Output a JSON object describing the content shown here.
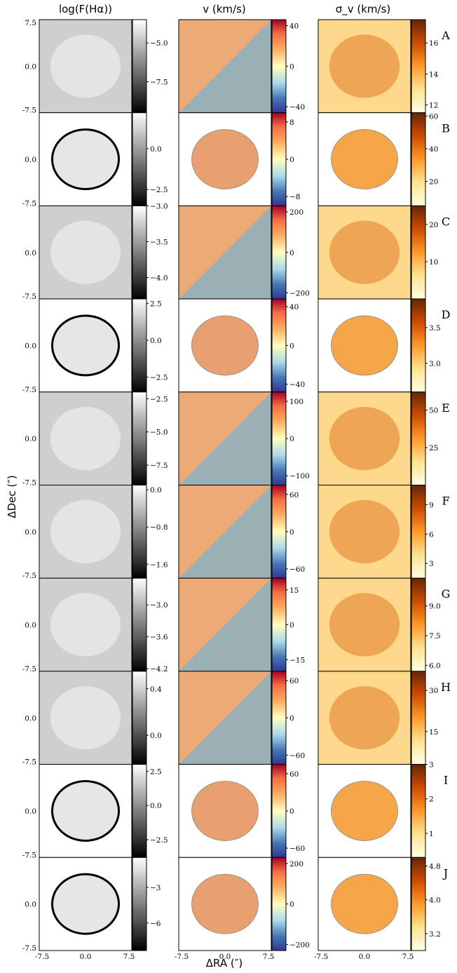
{
  "figure": {
    "column_titles": [
      "log(F(Hα))",
      "v (km/s)",
      "σ_v (km/s)"
    ],
    "ylabel": "ΔDec (″)",
    "xlabel": "ΔRA (″)"
  },
  "chart_data": {
    "type": "heatmap",
    "grid": false,
    "extent": [
      -7.5,
      7.5
    ],
    "x_ticks": [
      "-7.5",
      "0.0",
      "7.5"
    ],
    "y_ticks": [
      "7.5",
      "0.0",
      "-7.5"
    ],
    "columns": [
      {
        "key": "flux",
        "title": "log(F(Hα))",
        "colormap": "gray"
      },
      {
        "key": "velocity",
        "title": "v (km/s)",
        "colormap": "RdYlBu_r"
      },
      {
        "key": "dispersion",
        "title": "σ_v (km/s)",
        "colormap": "YlOrBr"
      }
    ],
    "rows": [
      {
        "label": "A",
        "mask": "full",
        "flux": {
          "min": -9.5,
          "max": -3.5,
          "ticks": [
            -5.0,
            -7.5
          ],
          "tick_labels": [
            "−5.0",
            "−7.5"
          ]
        },
        "velocity": {
          "min": -46,
          "max": 46,
          "ticks": [
            40,
            0,
            -40
          ],
          "tick_labels": [
            "40",
            "0",
            "−40"
          ]
        },
        "dispersion": {
          "min": 11.5,
          "max": 17.5,
          "ticks": [
            16,
            14,
            12
          ],
          "tick_labels": [
            "16",
            "14",
            "12"
          ]
        }
      },
      {
        "label": "B",
        "mask": "ellipse",
        "flux": {
          "min": -3.5,
          "max": 2.2,
          "ticks": [
            0.0,
            -2.5
          ],
          "tick_labels": [
            "0.0",
            "−2.5"
          ]
        },
        "velocity": {
          "min": -10,
          "max": 10,
          "ticks": [
            8,
            0,
            -8
          ],
          "tick_labels": [
            "8",
            "0",
            "−8"
          ]
        },
        "dispersion": {
          "min": 5,
          "max": 62,
          "ticks": [
            60,
            40,
            20
          ],
          "tick_labels": [
            "60",
            "40",
            "20"
          ]
        }
      },
      {
        "label": "C",
        "mask": "full",
        "flux": {
          "min": -4.3,
          "max": -3.0,
          "ticks": [
            -3.0,
            -3.5,
            -4.0
          ],
          "tick_labels": [
            "−3.0",
            "−3.5",
            "−4.0"
          ]
        },
        "velocity": {
          "min": -230,
          "max": 230,
          "ticks": [
            200,
            0,
            -200
          ],
          "tick_labels": [
            "200",
            "0",
            "−200"
          ]
        },
        "dispersion": {
          "min": 0,
          "max": 25,
          "ticks": [
            20,
            10
          ],
          "tick_labels": [
            "20",
            "10"
          ]
        }
      },
      {
        "label": "D",
        "mask": "irregular",
        "flux": {
          "min": -3.5,
          "max": 2.8,
          "ticks": [
            2.5,
            0.0,
            -2.5
          ],
          "tick_labels": [
            "2.5",
            "0.0",
            "−2.5"
          ]
        },
        "velocity": {
          "min": -48,
          "max": 48,
          "ticks": [
            40,
            0,
            -40
          ],
          "tick_labels": [
            "40",
            "0",
            "−40"
          ]
        },
        "dispersion": {
          "min": 2.6,
          "max": 3.9,
          "ticks": [
            3.5,
            3.0
          ],
          "tick_labels": [
            "3.5",
            "3.0"
          ]
        }
      },
      {
        "label": "E",
        "mask": "full",
        "flux": {
          "min": -9.0,
          "max": -2.0,
          "ticks": [
            -2.5,
            -5.0,
            -7.5
          ],
          "tick_labels": [
            "−2.5",
            "−5.0",
            "−7.5"
          ]
        },
        "velocity": {
          "min": -125,
          "max": 125,
          "ticks": [
            100,
            0,
            -100
          ],
          "tick_labels": [
            "100",
            "0",
            "−100"
          ]
        },
        "dispersion": {
          "min": 0,
          "max": 62,
          "ticks": [
            50,
            25
          ],
          "tick_labels": [
            "50",
            "25"
          ]
        }
      },
      {
        "label": "F",
        "mask": "full",
        "flux": {
          "min": -1.9,
          "max": 0.1,
          "ticks": [
            0.0,
            -0.8,
            -1.6
          ],
          "tick_labels": [
            "0.0",
            "−0.8",
            "−1.6"
          ]
        },
        "velocity": {
          "min": -75,
          "max": 75,
          "ticks": [
            60,
            0,
            -60
          ],
          "tick_labels": [
            "60",
            "0",
            "−60"
          ]
        },
        "dispersion": {
          "min": 1.5,
          "max": 11,
          "ticks": [
            9,
            6,
            3
          ],
          "tick_labels": [
            "9",
            "6",
            "3"
          ]
        }
      },
      {
        "label": "G",
        "mask": "full",
        "flux": {
          "min": -4.25,
          "max": -2.5,
          "ticks": [
            -3.0,
            -3.6,
            -4.2
          ],
          "tick_labels": [
            "−3.0",
            "−3.6",
            "−4.2"
          ]
        },
        "velocity": {
          "min": -20,
          "max": 20,
          "ticks": [
            15,
            0,
            -15
          ],
          "tick_labels": [
            "15",
            "0",
            "−15"
          ]
        },
        "dispersion": {
          "min": 5.7,
          "max": 10.4,
          "ticks": [
            9.0,
            7.5,
            6.0
          ],
          "tick_labels": [
            "9.0",
            "7.5",
            "6.0"
          ]
        }
      },
      {
        "label": "H",
        "mask": "full",
        "flux": {
          "min": -0.25,
          "max": 0.55,
          "ticks": [
            0.4,
            0.0
          ],
          "tick_labels": [
            "0.4",
            "0.0"
          ]
        },
        "velocity": {
          "min": -75,
          "max": 75,
          "ticks": [
            60,
            0,
            -60
          ],
          "tick_labels": [
            "60",
            "0",
            "−60"
          ]
        },
        "dispersion": {
          "min": 3,
          "max": 37,
          "ticks": [
            30,
            15
          ],
          "tick_labels": [
            "30",
            "15"
          ]
        }
      },
      {
        "label": "I",
        "mask": "irregular",
        "flux": {
          "min": -3.8,
          "max": 3.0,
          "ticks": [
            2.5,
            0.0,
            -2.5
          ],
          "tick_labels": [
            "2.5",
            "0.0",
            "−2.5"
          ]
        },
        "velocity": {
          "min": -75,
          "max": 75,
          "ticks": [
            60,
            0,
            -60
          ],
          "tick_labels": [
            "60",
            "0",
            "−60"
          ]
        },
        "dispersion": {
          "min": 0.3,
          "max": 3.0,
          "ticks": [
            3,
            2,
            1
          ],
          "tick_labels": [
            "3",
            "2",
            "1"
          ]
        }
      },
      {
        "label": "J",
        "mask": "irregular",
        "flux": {
          "min": -8.3,
          "max": -0.5,
          "ticks": [
            -3,
            -6
          ],
          "tick_labels": [
            "−3",
            "−6"
          ]
        },
        "velocity": {
          "min": -230,
          "max": 230,
          "ticks": [
            200,
            0,
            -200
          ],
          "tick_labels": [
            "200",
            "0",
            "−200"
          ]
        },
        "dispersion": {
          "min": 2.8,
          "max": 5.0,
          "ticks": [
            4.8,
            4.0,
            3.2
          ],
          "tick_labels": [
            "4.8",
            "4.0",
            "3.2"
          ]
        }
      }
    ]
  }
}
